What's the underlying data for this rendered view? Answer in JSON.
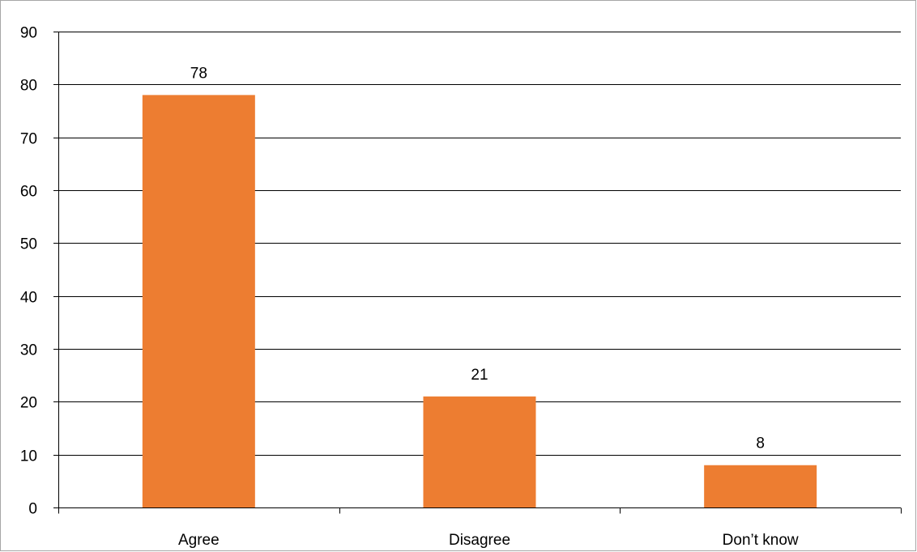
{
  "chart_data": {
    "type": "bar",
    "categories": [
      "Agree",
      "Disagree",
      "Don’t know"
    ],
    "values": [
      78,
      21,
      8
    ],
    "data_labels": [
      "78",
      "21",
      "8"
    ],
    "title": "",
    "xlabel": "",
    "ylabel": "",
    "ylim": [
      0,
      90
    ],
    "yticks": [
      "0",
      "10",
      "20",
      "30",
      "40",
      "50",
      "60",
      "70",
      "80",
      "90"
    ],
    "grid": true,
    "legend": "none",
    "bar_color": "#ED7D31",
    "gridline_color": "#000000"
  }
}
